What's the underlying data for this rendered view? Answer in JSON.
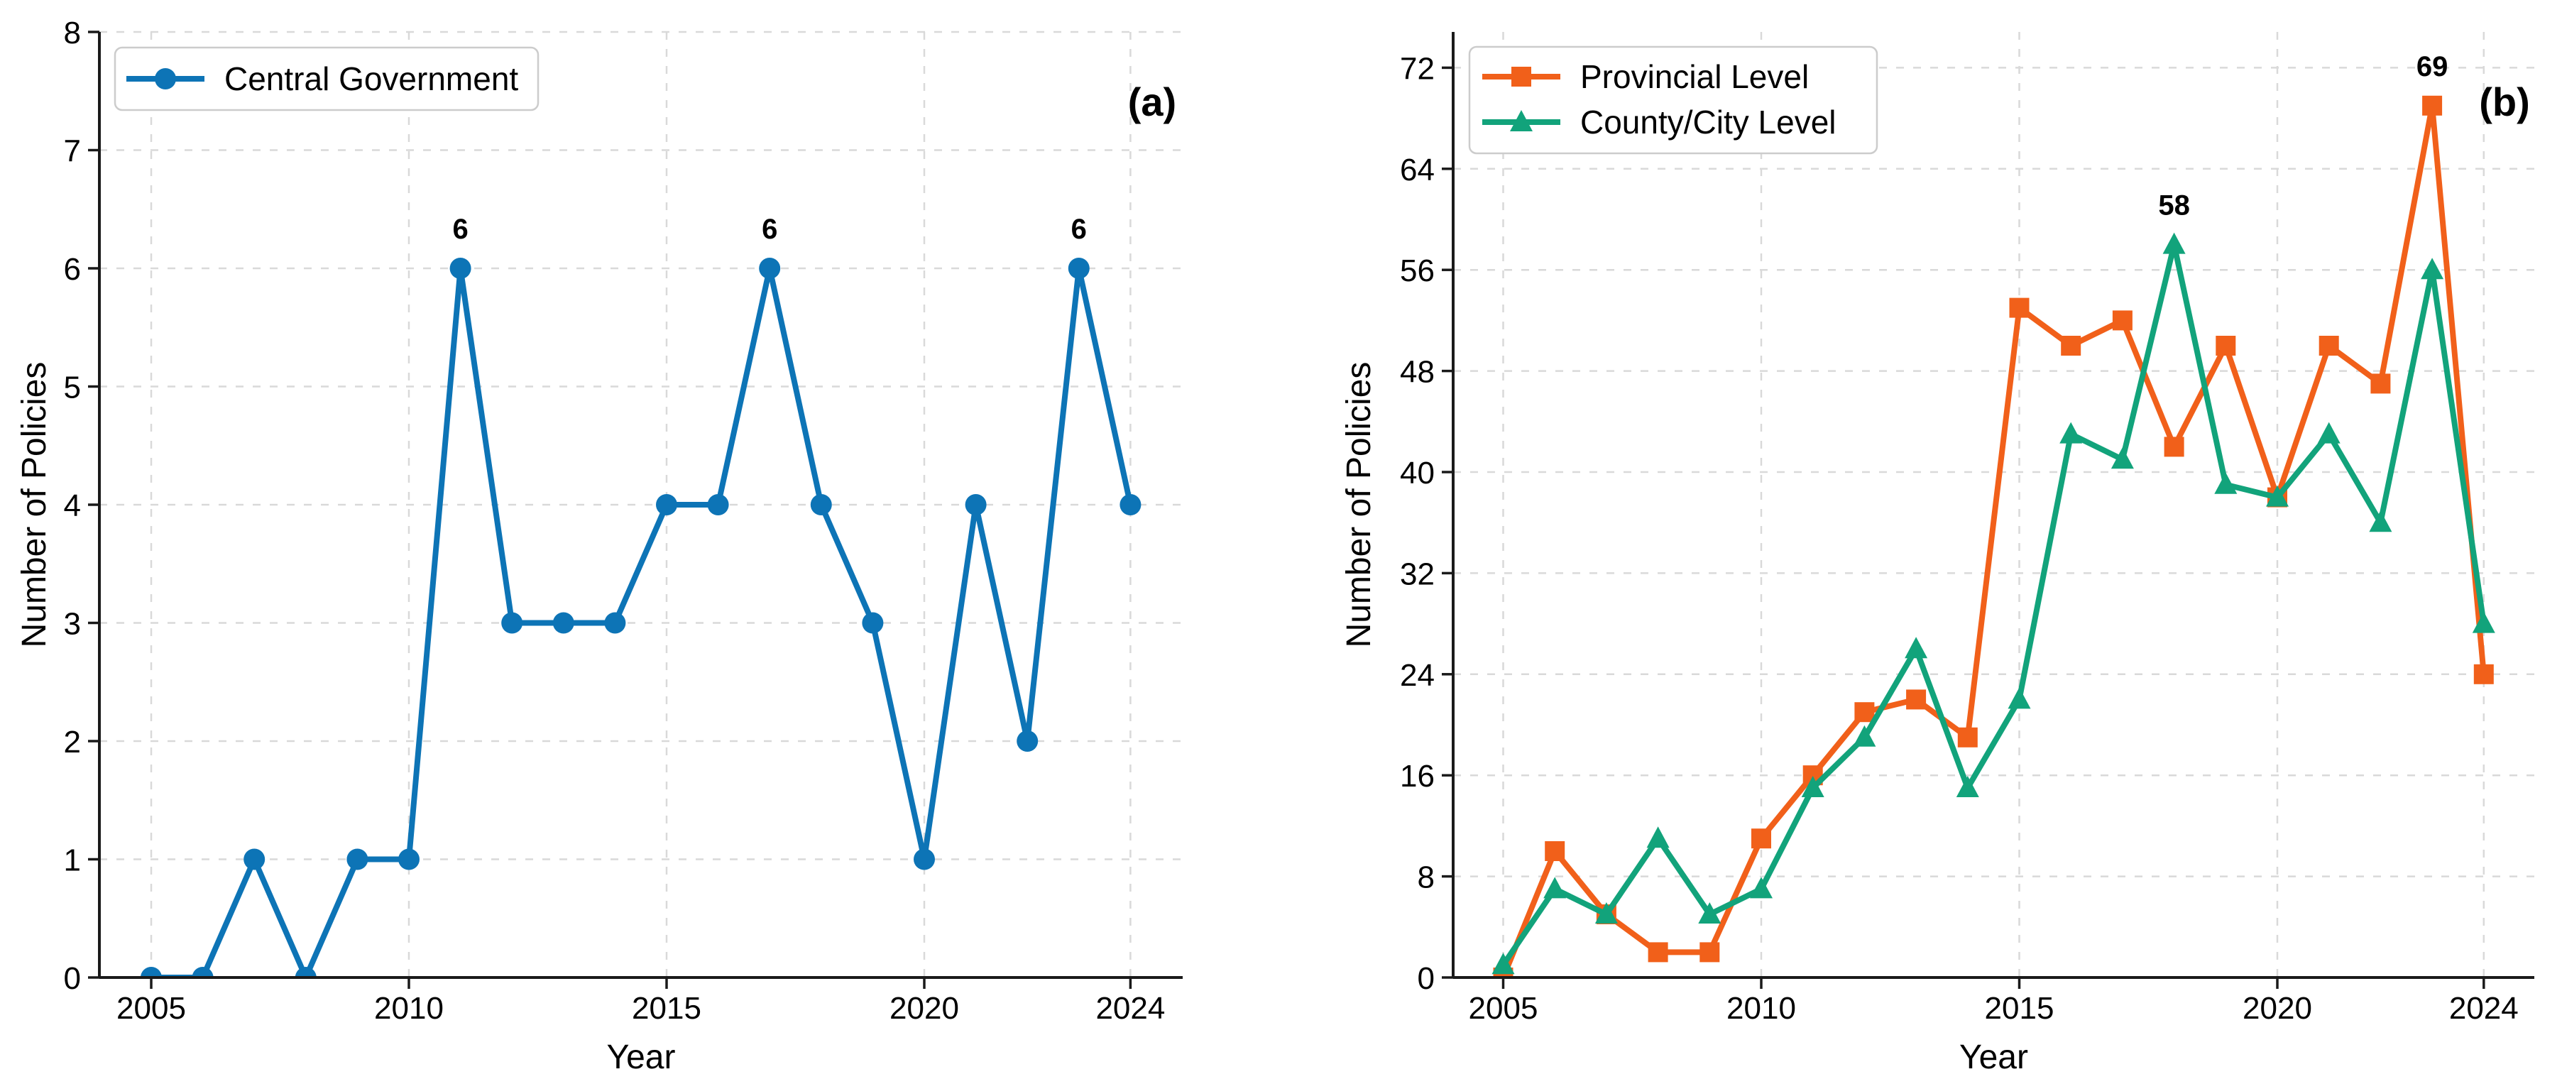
{
  "styles": {
    "background": "#ffffff",
    "grid_color": "#d9d9d9",
    "axis_color": "#1a1a1a",
    "text_color": "#000000",
    "legend_border_color": "#cccccc",
    "blue": "#0d74b6",
    "orange": "#f1601a",
    "green": "#12a37b"
  },
  "chart_data": [
    {
      "id": "a",
      "type": "line",
      "corner_label": "(a)",
      "xlabel": "Year",
      "ylabel": "Number of Policies",
      "grid": true,
      "legend_position": "upper-left",
      "xlim": [
        2004,
        2025
      ],
      "ylim": [
        0,
        8
      ],
      "x": [
        2005,
        2006,
        2007,
        2008,
        2009,
        2010,
        2011,
        2012,
        2013,
        2014,
        2015,
        2016,
        2017,
        2018,
        2019,
        2020,
        2021,
        2022,
        2023,
        2024
      ],
      "x_ticks": [
        2005,
        2010,
        2015,
        2020,
        2024
      ],
      "x_tick_labels": [
        "2005",
        "2010",
        "2015",
        "2020",
        "2024"
      ],
      "y_ticks": [
        0,
        1,
        2,
        3,
        4,
        5,
        6,
        7,
        8
      ],
      "y_tick_labels": [
        "0",
        "1",
        "2",
        "3",
        "4",
        "5",
        "6",
        "7",
        "8"
      ],
      "series": [
        {
          "name": "Central Government",
          "color": "#0d74b6",
          "marker": "circle",
          "values": [
            0,
            0,
            1,
            0,
            1,
            1,
            6,
            3,
            3,
            3,
            4,
            4,
            6,
            4,
            3,
            1,
            4,
            2,
            6,
            4
          ],
          "annotations": [
            {
              "x": 2011,
              "y": 6,
              "text": "6"
            },
            {
              "x": 2017,
              "y": 6,
              "text": "6"
            },
            {
              "x": 2023,
              "y": 6,
              "text": "6"
            }
          ]
        }
      ]
    },
    {
      "id": "b",
      "type": "line",
      "corner_label": "(b)",
      "xlabel": "Year",
      "ylabel": "Number of Policies",
      "grid": true,
      "legend_position": "upper-left",
      "xlim": [
        2004,
        2025
      ],
      "ylim": [
        0,
        74
      ],
      "x": [
        2005,
        2006,
        2007,
        2008,
        2009,
        2010,
        2011,
        2012,
        2013,
        2014,
        2015,
        2016,
        2017,
        2018,
        2019,
        2020,
        2021,
        2022,
        2023,
        2024
      ],
      "x_ticks": [
        2005,
        2010,
        2015,
        2020,
        2024
      ],
      "x_tick_labels": [
        "2005",
        "2010",
        "2015",
        "2020",
        "2024"
      ],
      "y_ticks": [
        0,
        8,
        16,
        24,
        32,
        40,
        48,
        56,
        64,
        72
      ],
      "y_tick_labels": [
        "0",
        "8",
        "16",
        "24",
        "32",
        "40",
        "48",
        "56",
        "64",
        "72"
      ],
      "series": [
        {
          "name": "Provincial Level",
          "color": "#f1601a",
          "marker": "square",
          "values": [
            0,
            10,
            5,
            2,
            2,
            11,
            16,
            21,
            22,
            19,
            53,
            50,
            52,
            42,
            50,
            38,
            50,
            47,
            69,
            24
          ],
          "annotations": [
            {
              "x": 2023,
              "y": 69,
              "text": "69"
            }
          ]
        },
        {
          "name": "County/City Level",
          "color": "#12a37b",
          "marker": "triangle",
          "values": [
            1,
            7,
            5,
            11,
            5,
            7,
            15,
            19,
            26,
            15,
            22,
            43,
            41,
            58,
            39,
            38,
            43,
            36,
            56,
            28
          ],
          "annotations": [
            {
              "x": 2018,
              "y": 58,
              "text": "58"
            }
          ]
        }
      ]
    }
  ]
}
